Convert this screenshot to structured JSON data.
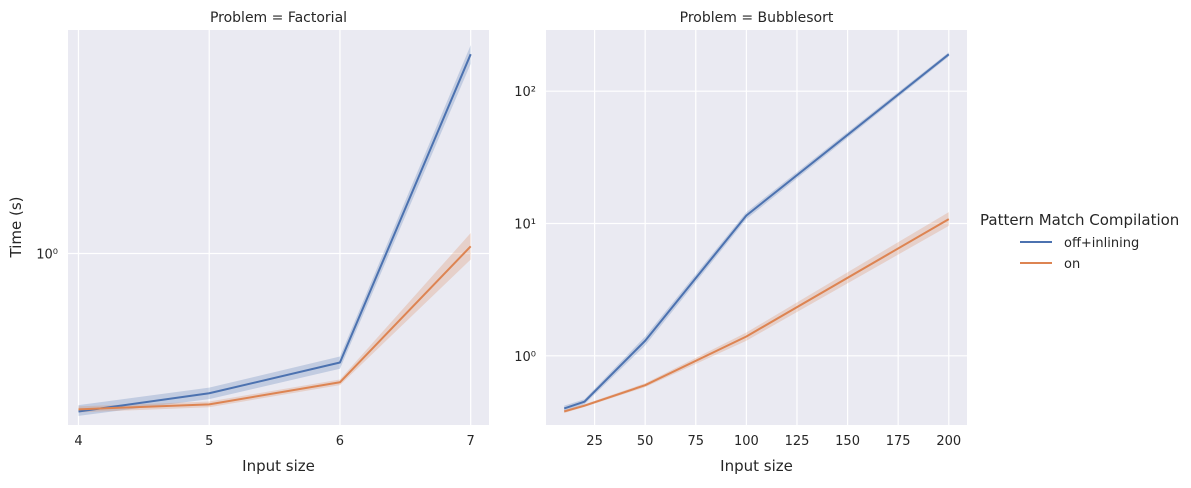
{
  "y_axis_label": "Time (s)",
  "legend": {
    "title": "Pattern Match Compilation",
    "entries": [
      {
        "name": "off+inlining",
        "color": "#4c72b0"
      },
      {
        "name": "on",
        "color": "#dd8452"
      }
    ]
  },
  "chart_data": [
    {
      "type": "line",
      "title": "Problem = Factorial",
      "xlabel": "Input size",
      "ylabel": "Time (s)",
      "yscale": "log",
      "xlim": [
        3.92,
        7.14
      ],
      "ylim": [
        0.31,
        4.6
      ],
      "xticks": [
        4,
        5,
        6,
        7
      ],
      "xtick_labels": [
        "4",
        "5",
        "6",
        "7"
      ],
      "yticks": [
        1
      ],
      "ytick_labels": [
        "10⁰"
      ],
      "grid": true,
      "x": [
        4,
        5,
        6,
        7
      ],
      "series": [
        {
          "name": "off+inlining",
          "color": "#4c72b0",
          "values": [
            0.34,
            0.385,
            0.475,
            3.9
          ],
          "ci_low": [
            0.33,
            0.37,
            0.455,
            3.65
          ],
          "ci_high": [
            0.355,
            0.4,
            0.495,
            4.15
          ]
        },
        {
          "name": "on",
          "color": "#dd8452",
          "values": [
            0.345,
            0.357,
            0.415,
            1.05
          ],
          "ci_low": [
            0.338,
            0.35,
            0.407,
            0.96
          ],
          "ci_high": [
            0.352,
            0.364,
            0.423,
            1.15
          ]
        }
      ]
    },
    {
      "type": "line",
      "title": "Problem = Bubblesort",
      "xlabel": "Input size",
      "ylabel": "",
      "yscale": "log",
      "xlim": [
        1,
        209
      ],
      "ylim": [
        0.3,
        290
      ],
      "xticks": [
        25,
        50,
        75,
        100,
        125,
        150,
        175,
        200
      ],
      "xtick_labels": [
        "25",
        "50",
        "75",
        "100",
        "125",
        "150",
        "175",
        "200"
      ],
      "yticks": [
        1,
        10,
        100
      ],
      "ytick_labels": [
        "10⁰",
        "10¹",
        "10²"
      ],
      "grid": true,
      "x": [
        10,
        20,
        50,
        100,
        200
      ],
      "series": [
        {
          "name": "off+inlining",
          "color": "#4c72b0",
          "values": [
            0.4,
            0.45,
            1.3,
            11.5,
            190
          ],
          "ci_low": [
            0.38,
            0.43,
            1.2,
            10.8,
            183
          ],
          "ci_high": [
            0.42,
            0.47,
            1.4,
            12.2,
            197
          ]
        },
        {
          "name": "on",
          "color": "#dd8452",
          "values": [
            0.38,
            0.42,
            0.6,
            1.4,
            10.8
          ],
          "ci_low": [
            0.37,
            0.41,
            0.58,
            1.3,
            9.6
          ],
          "ci_high": [
            0.39,
            0.43,
            0.62,
            1.5,
            12.2
          ]
        }
      ]
    }
  ]
}
